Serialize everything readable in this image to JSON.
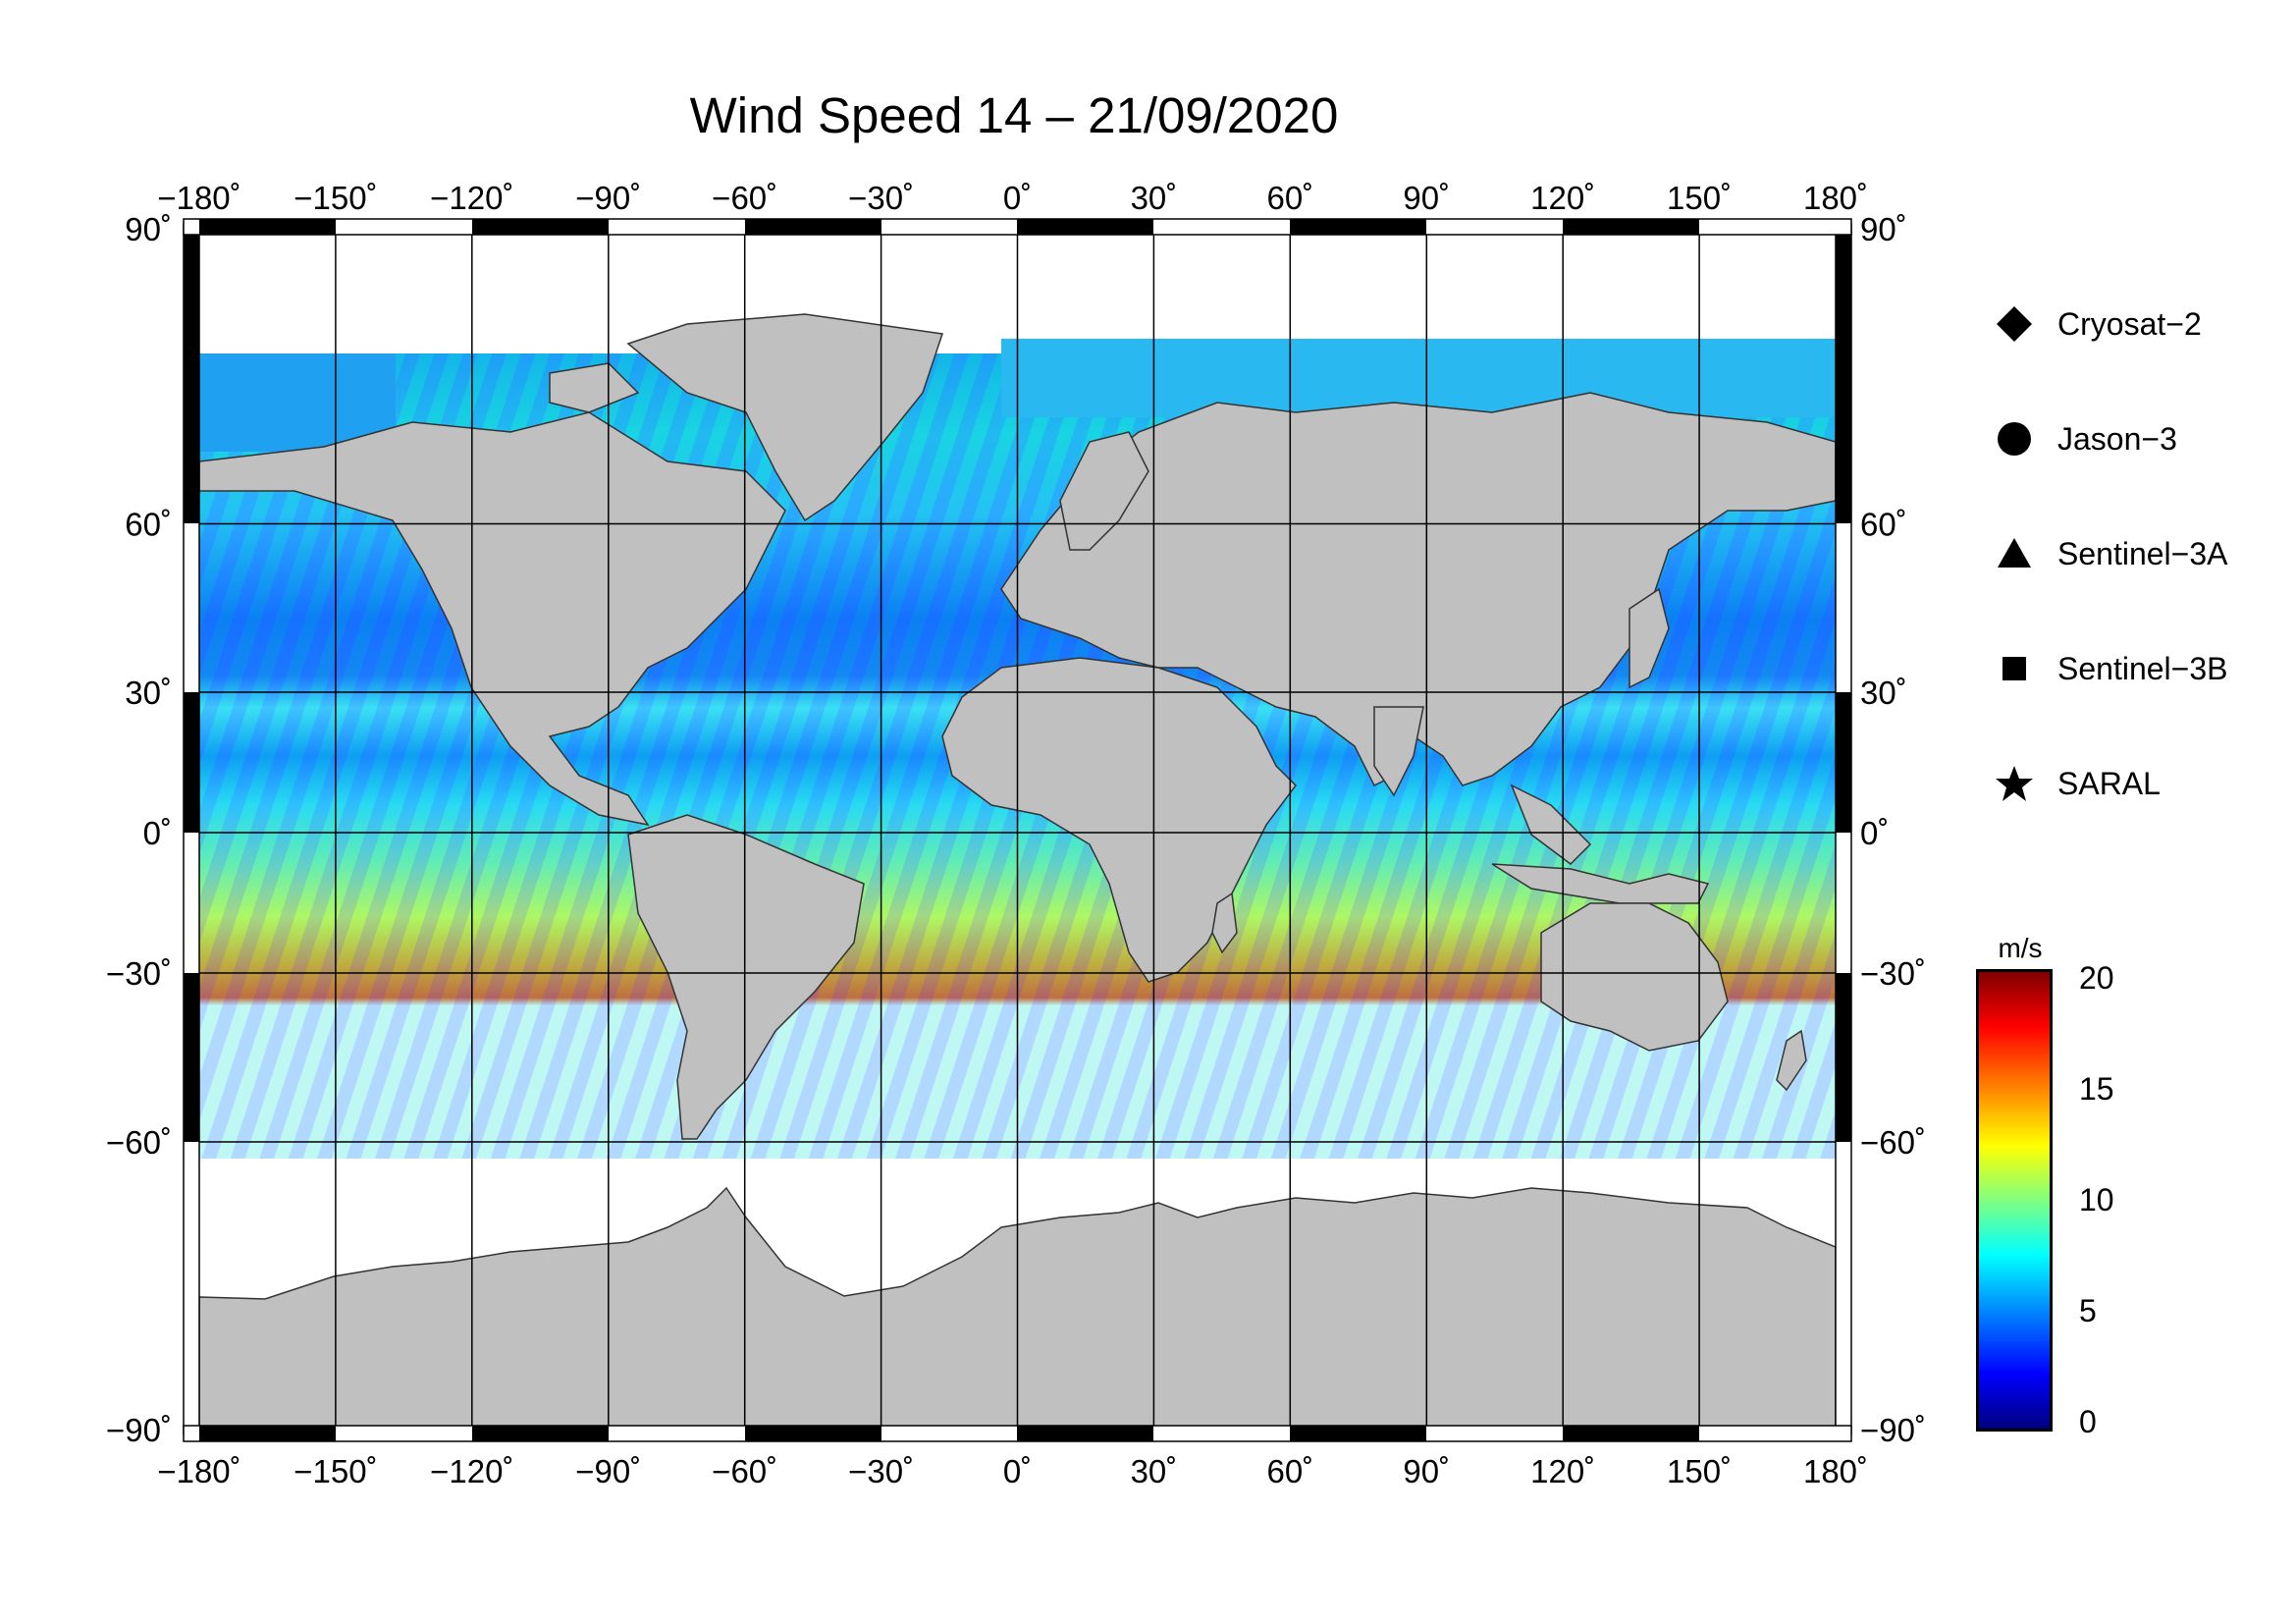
{
  "title": "Wind Speed 14 – 21/09/2020",
  "map": {
    "lon_ticks": [
      "−180˚",
      "−150˚",
      "−120˚",
      "−90˚",
      "−60˚",
      "−30˚",
      "0˚",
      "30˚",
      "60˚",
      "90˚",
      "120˚",
      "150˚",
      "180˚"
    ],
    "lat_ticks": [
      "90˚",
      "60˚",
      "30˚",
      "0˚",
      "−30˚",
      "−60˚",
      "−90˚"
    ],
    "lon_range": [
      -180,
      180
    ],
    "lat_range": [
      -90,
      90
    ],
    "grid": true,
    "land_color": "#c0c0c0",
    "ice_color": "#ffffff"
  },
  "legend": {
    "items": [
      {
        "label": "Cryosat−2",
        "symbol": "diamond"
      },
      {
        "label": "Jason−3",
        "symbol": "circle"
      },
      {
        "label": "Sentinel−3A",
        "symbol": "triangle"
      },
      {
        "label": "Sentinel−3B",
        "symbol": "square"
      },
      {
        "label": "SARAL",
        "symbol": "star"
      }
    ]
  },
  "colorbar": {
    "unit": "m/s",
    "min": 0,
    "max": 20,
    "ticks": [
      "20",
      "15",
      "10",
      "5",
      "0"
    ],
    "colormap": "jet"
  }
}
